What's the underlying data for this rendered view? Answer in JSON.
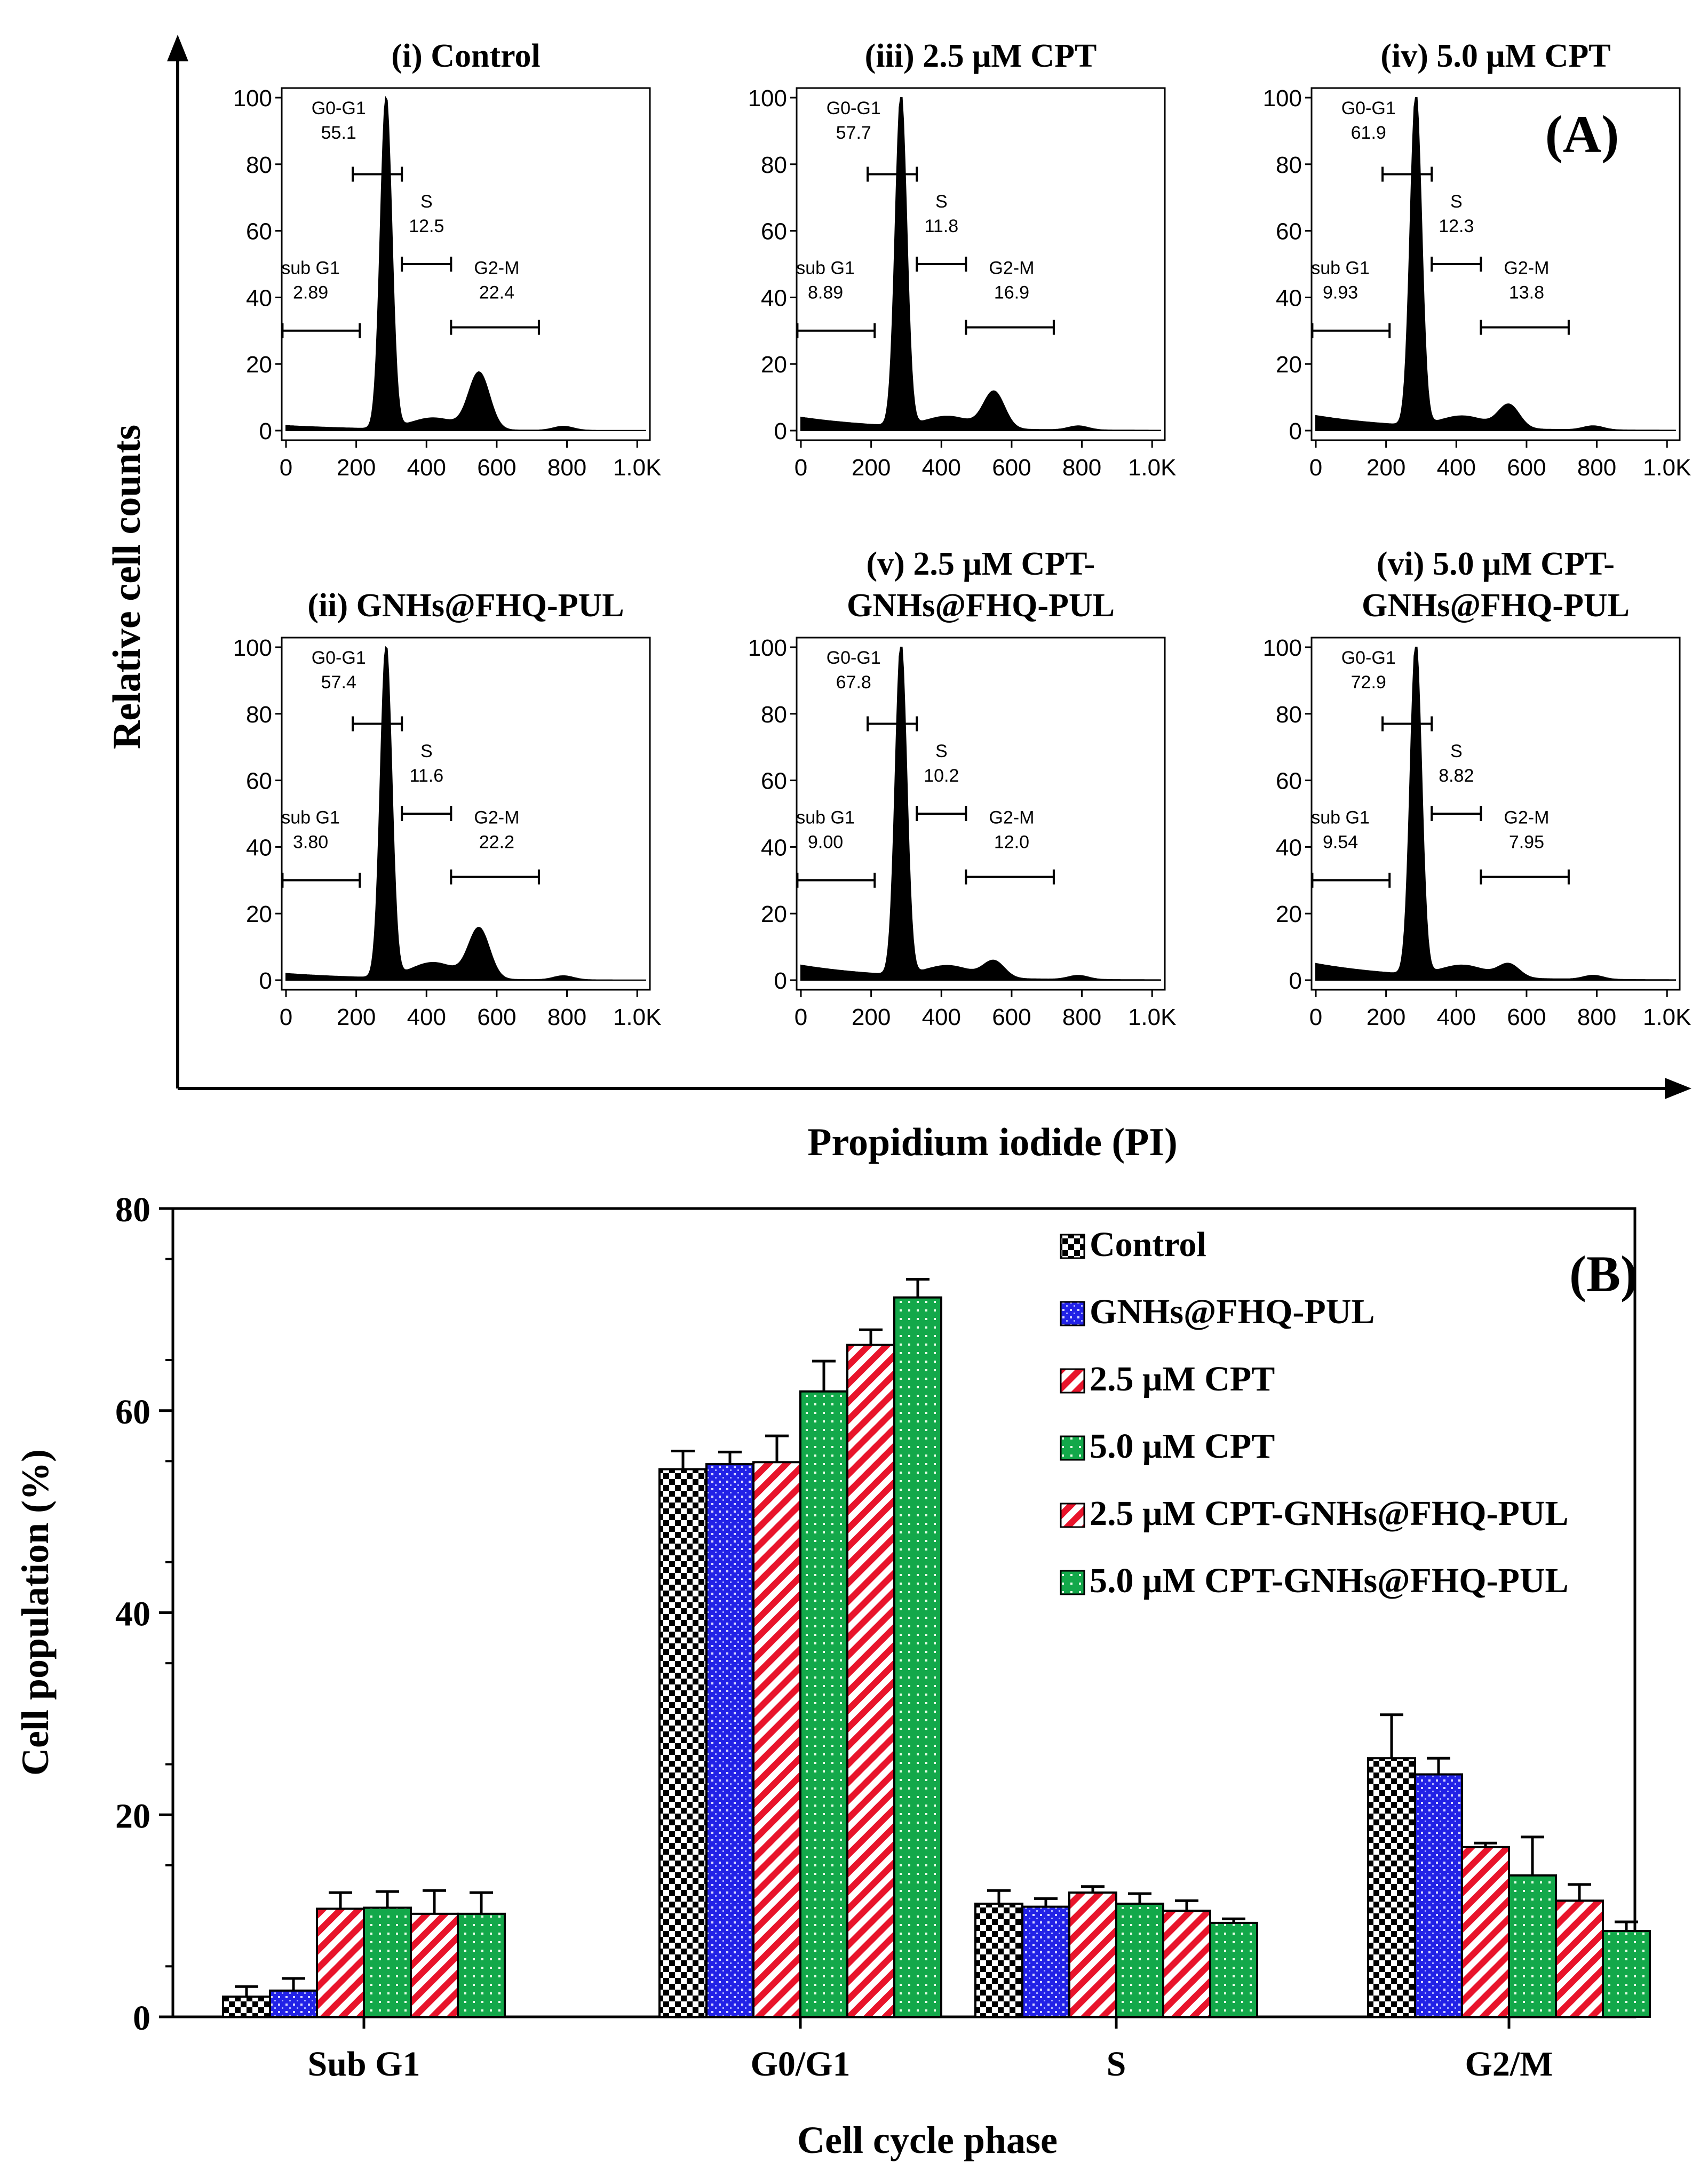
{
  "panel_a": {
    "label": "(A)",
    "y_title": "Relative cell counts",
    "x_title": "Propidium iodide (PI)",
    "y_ticks": [
      "0",
      "20",
      "40",
      "60",
      "80",
      "100"
    ],
    "x_ticks": [
      "0",
      "200",
      "400",
      "600",
      "800",
      "1.0K"
    ],
    "histograms": [
      {
        "title": [
          "(i) Control"
        ],
        "gates": [
          {
            "name": "sub G1",
            "value": "2.89"
          },
          {
            "name": "G0-G1",
            "value": "55.1"
          },
          {
            "name": "S",
            "value": "12.5"
          },
          {
            "name": "G2-M",
            "value": "22.4"
          }
        ]
      },
      {
        "title": [
          "(iii) 2.5 μM CPT"
        ],
        "gates": [
          {
            "name": "sub G1",
            "value": "8.89"
          },
          {
            "name": "G0-G1",
            "value": "57.7"
          },
          {
            "name": "S",
            "value": "11.8"
          },
          {
            "name": "G2-M",
            "value": "16.9"
          }
        ]
      },
      {
        "title": [
          "(iv) 5.0 μM CPT"
        ],
        "gates": [
          {
            "name": "sub G1",
            "value": "9.93"
          },
          {
            "name": "G0-G1",
            "value": "61.9"
          },
          {
            "name": "S",
            "value": "12.3"
          },
          {
            "name": "G2-M",
            "value": "13.8"
          }
        ]
      },
      {
        "title": [
          "(ii) GNHs@FHQ-PUL"
        ],
        "gates": [
          {
            "name": "sub G1",
            "value": "3.80"
          },
          {
            "name": "G0-G1",
            "value": "57.4"
          },
          {
            "name": "S",
            "value": "11.6"
          },
          {
            "name": "G2-M",
            "value": "22.2"
          }
        ]
      },
      {
        "title": [
          "(v) 2.5 μM CPT-",
          "GNHs@FHQ-PUL"
        ],
        "gates": [
          {
            "name": "sub G1",
            "value": "9.00"
          },
          {
            "name": "G0-G1",
            "value": "67.8"
          },
          {
            "name": "S",
            "value": "10.2"
          },
          {
            "name": "G2-M",
            "value": "12.0"
          }
        ]
      },
      {
        "title": [
          "(vi) 5.0 μM CPT-",
          "GNHs@FHQ-PUL"
        ],
        "gates": [
          {
            "name": "sub G1",
            "value": "9.54"
          },
          {
            "name": "G0-G1",
            "value": "72.9"
          },
          {
            "name": "S",
            "value": "8.82"
          },
          {
            "name": "G2-M",
            "value": "7.95"
          }
        ]
      }
    ]
  },
  "chart_data": {
    "type": "bar",
    "label": "(B)",
    "title": "",
    "xlabel": "Cell cycle phase",
    "ylabel": "Cell population (%)",
    "ylim": [
      0,
      80
    ],
    "y_ticks": [
      0,
      20,
      40,
      60,
      80
    ],
    "categories": [
      "Sub G1",
      "G0/G1",
      "S",
      "G2/M"
    ],
    "legend_position": "top-right",
    "series": [
      {
        "name": "Control",
        "pattern": "checker",
        "color": "#000000",
        "values": [
          2.0,
          54.2,
          11.2,
          25.6
        ],
        "errors": [
          1.0,
          1.8,
          1.3,
          4.3
        ]
      },
      {
        "name": "GNHs@FHQ-PUL",
        "pattern": "dots",
        "color": "#1a1adb",
        "values": [
          2.6,
          54.7,
          10.9,
          24.0
        ],
        "errors": [
          1.2,
          1.2,
          0.8,
          1.6
        ]
      },
      {
        "name": "2.5 μM CPT",
        "pattern": "diagonal",
        "color": "#e8142b",
        "values": [
          10.7,
          54.9,
          12.3,
          16.8
        ],
        "errors": [
          1.6,
          2.6,
          0.6,
          0.4
        ]
      },
      {
        "name": "5.0 μM CPT",
        "pattern": "grid-dots",
        "color": "#13a84a",
        "values": [
          10.8,
          61.9,
          11.2,
          14.0
        ],
        "errors": [
          1.6,
          3.0,
          1.0,
          3.8
        ]
      },
      {
        "name": "2.5 μM CPT-GNHs@FHQ-PUL",
        "pattern": "diagonal",
        "color": "#e8142b",
        "values": [
          10.2,
          66.5,
          10.5,
          11.5
        ],
        "errors": [
          2.3,
          1.5,
          1.0,
          1.6
        ]
      },
      {
        "name": "5.0 μM CPT-GNHs@FHQ-PUL",
        "pattern": "grid-dots",
        "color": "#13a84a",
        "values": [
          10.2,
          71.2,
          9.3,
          8.5
        ],
        "errors": [
          2.1,
          1.8,
          0.4,
          0.9
        ]
      }
    ]
  }
}
